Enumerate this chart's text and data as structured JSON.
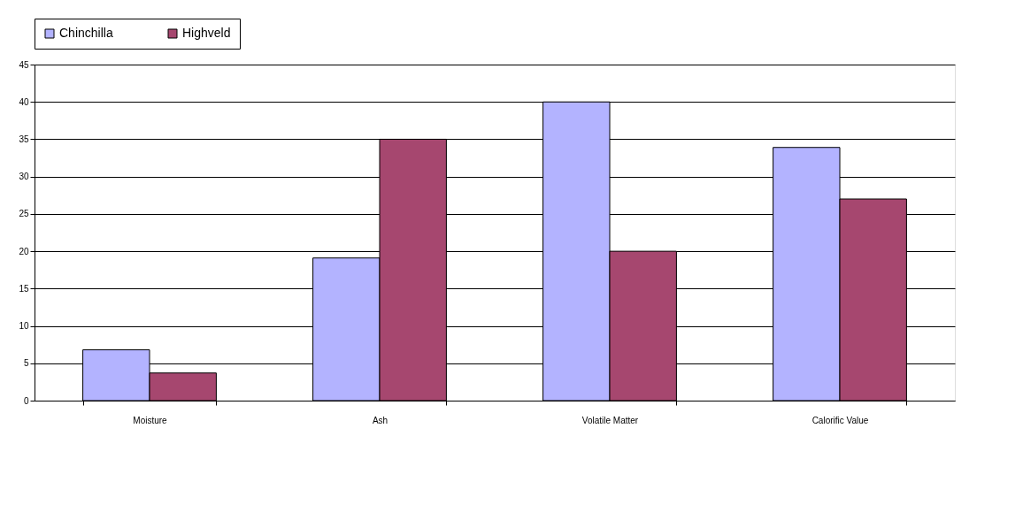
{
  "chart_data": {
    "type": "bar",
    "categories": [
      "Moisture",
      "Ash",
      "Volatile Matter",
      "Calorific Value"
    ],
    "series": [
      {
        "name": "Chinchilla",
        "color": "#b3b3ff",
        "values": [
          6.8,
          19.1,
          40,
          33.9
        ]
      },
      {
        "name": "Highveld",
        "color": "#a6476f",
        "values": [
          3.7,
          35,
          20,
          27
        ]
      }
    ],
    "ylim": [
      0,
      45
    ],
    "yticks": [
      0,
      5,
      10,
      15,
      20,
      25,
      30,
      35,
      40,
      45
    ],
    "grid": "y",
    "legend": "top"
  }
}
